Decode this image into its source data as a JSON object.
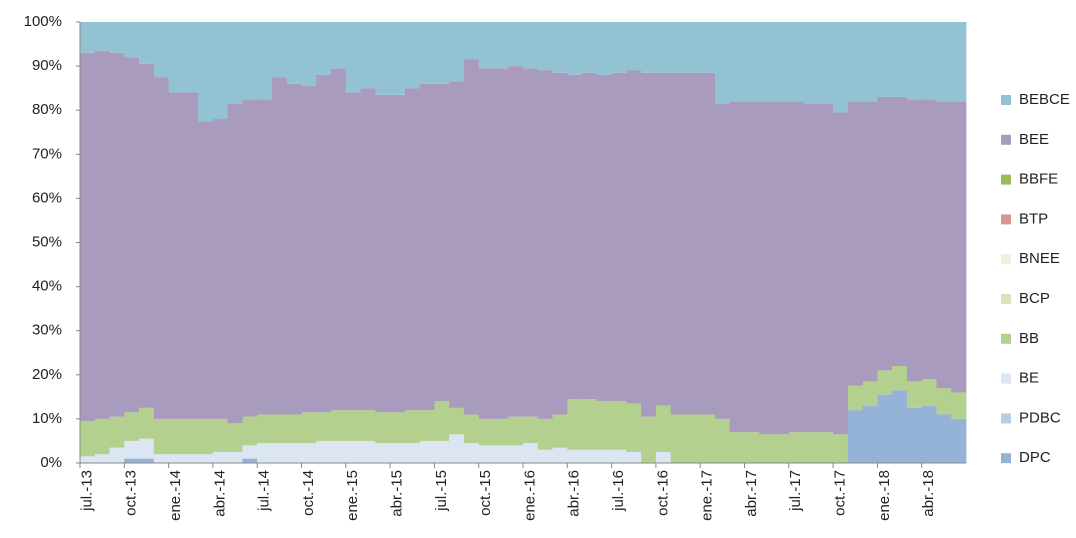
{
  "chart_data": {
    "type": "stacked-area-100",
    "categories": [
      "jul.-13",
      null,
      null,
      "oct.-13",
      null,
      null,
      "ene.-14",
      null,
      null,
      "abr.-14",
      null,
      null,
      "jul.-14",
      null,
      null,
      "oct.-14",
      null,
      null,
      "ene.-15",
      null,
      null,
      "abr.-15",
      null,
      null,
      "jul.-15",
      null,
      null,
      "oct.-15",
      null,
      null,
      "ene.-16",
      null,
      null,
      "abr.-16",
      null,
      null,
      "jul.-16",
      null,
      null,
      "oct.-16",
      null,
      null,
      "ene.-17",
      null,
      null,
      "abr.-17",
      null,
      null,
      "jul.-17",
      null,
      null,
      "oct.-17",
      null,
      null,
      "ene.-18",
      null,
      null,
      "abr.-18",
      null,
      null
    ],
    "ylim": [
      0,
      100
    ],
    "yticks": [
      {
        "value": 0,
        "label": "0%"
      },
      {
        "value": 10,
        "label": "10%"
      },
      {
        "value": 20,
        "label": "20%"
      },
      {
        "value": 30,
        "label": "30%"
      },
      {
        "value": 40,
        "label": "40%"
      },
      {
        "value": 50,
        "label": "50%"
      },
      {
        "value": 60,
        "label": "60%"
      },
      {
        "value": 70,
        "label": "70%"
      },
      {
        "value": 80,
        "label": "80%"
      },
      {
        "value": 90,
        "label": "90%"
      },
      {
        "value": 100,
        "label": "100%"
      }
    ],
    "legend": "right",
    "series": [
      {
        "name": "DPC",
        "color": "#95b3d7",
        "values": [
          0,
          0,
          0,
          1,
          1,
          0,
          0,
          0,
          0,
          0,
          0,
          1,
          0,
          0,
          0,
          0,
          0,
          0,
          0,
          0,
          0,
          0,
          0,
          0,
          0,
          0,
          0,
          0,
          0,
          0,
          0,
          0,
          0,
          0,
          0,
          0,
          0,
          0,
          0,
          0,
          0,
          0,
          0,
          0,
          0,
          0,
          0,
          0,
          0,
          0,
          0,
          0,
          12,
          13,
          15.5,
          16.5,
          12.5,
          13,
          11,
          10
        ]
      },
      {
        "name": "PDBC",
        "color": "#b9cde5",
        "values": [
          0,
          0,
          0,
          0,
          0,
          0,
          0,
          0,
          0,
          0,
          0,
          0,
          0,
          0,
          0,
          0,
          0,
          0,
          0,
          0,
          0,
          0,
          0,
          0,
          0,
          0,
          0,
          0,
          0,
          0,
          0,
          0,
          0,
          0,
          0,
          0,
          0,
          0,
          0,
          0,
          0,
          0,
          0,
          0,
          0,
          0,
          0,
          0,
          0,
          0,
          0,
          0,
          0,
          0,
          0,
          0,
          0,
          0,
          0,
          0
        ]
      },
      {
        "name": "BE",
        "color": "#dce6f2",
        "values": [
          1.5,
          2,
          3.5,
          4,
          4.5,
          2,
          2,
          2,
          2,
          2.5,
          2.5,
          3,
          4.5,
          4.5,
          4.5,
          4.5,
          5,
          5,
          5,
          5,
          4.5,
          4.5,
          4.5,
          5,
          5,
          6.5,
          4.5,
          4,
          4,
          4,
          4.5,
          3,
          3.5,
          3,
          3,
          3,
          3,
          2.5,
          0,
          2.5,
          0,
          0,
          0,
          0,
          0,
          0,
          0,
          0,
          0,
          0,
          0,
          0,
          0,
          0,
          0,
          0,
          0,
          0,
          0,
          0
        ]
      },
      {
        "name": "BB",
        "color": "#b3d08f",
        "values": [
          8,
          8,
          7,
          6.5,
          7,
          8,
          8,
          8,
          8,
          7.5,
          6.5,
          6.5,
          6.5,
          6.5,
          6.5,
          7,
          6.5,
          7,
          7,
          7,
          7,
          7,
          7.5,
          7,
          9,
          6,
          6.5,
          6,
          6,
          6.5,
          6,
          7,
          7.5,
          11.5,
          11.5,
          11,
          11,
          11,
          10.5,
          10.5,
          11,
          11,
          11,
          10,
          7,
          7,
          6.5,
          6.5,
          7,
          7,
          7,
          6.5,
          5.5,
          5.5,
          5.5,
          5.5,
          6,
          6,
          6,
          6
        ]
      },
      {
        "name": "BCP",
        "color": "#d7e4bd",
        "values": [
          0,
          0,
          0,
          0,
          0,
          0,
          0,
          0,
          0,
          0,
          0,
          0,
          0,
          0,
          0,
          0,
          0,
          0,
          0,
          0,
          0,
          0,
          0,
          0,
          0,
          0,
          0,
          0,
          0,
          0,
          0,
          0,
          0,
          0,
          0,
          0,
          0,
          0,
          0,
          0,
          0,
          0,
          0,
          0,
          0,
          0,
          0,
          0,
          0,
          0,
          0,
          0,
          0,
          0,
          0,
          0,
          0,
          0,
          0,
          0
        ]
      },
      {
        "name": "BNEE",
        "color": "#ebf1de",
        "values": [
          0,
          0,
          0,
          0,
          0,
          0,
          0,
          0,
          0,
          0,
          0,
          0,
          0,
          0,
          0,
          0,
          0,
          0,
          0,
          0,
          0,
          0,
          0,
          0,
          0,
          0,
          0,
          0,
          0,
          0,
          0,
          0,
          0,
          0,
          0,
          0,
          0,
          0,
          0,
          0,
          0,
          0,
          0,
          0,
          0,
          0,
          0,
          0,
          0,
          0,
          0,
          0,
          0,
          0,
          0,
          0,
          0,
          0,
          0,
          0
        ]
      },
      {
        "name": "BTP",
        "color": "#d99694",
        "values": [
          0,
          0,
          0,
          0,
          0,
          0,
          0,
          0,
          0,
          0,
          0,
          0,
          0,
          0,
          0,
          0,
          0,
          0,
          0,
          0,
          0,
          0,
          0,
          0,
          0,
          0,
          0,
          0,
          0,
          0,
          0,
          0,
          0,
          0,
          0,
          0,
          0,
          0,
          0,
          0,
          0,
          0,
          0,
          0,
          0,
          0,
          0,
          0,
          0,
          0,
          0,
          0,
          0,
          0,
          0,
          0,
          0,
          0,
          0,
          0
        ]
      },
      {
        "name": "BBFE",
        "color": "#9bbb59",
        "values": [
          0,
          0,
          0,
          0,
          0,
          0,
          0,
          0,
          0,
          0,
          0,
          0,
          0,
          0,
          0,
          0,
          0,
          0,
          0,
          0,
          0,
          0,
          0,
          0,
          0,
          0,
          0,
          0,
          0,
          0,
          0,
          0,
          0,
          0,
          0,
          0,
          0,
          0,
          0,
          0,
          0,
          0,
          0,
          0,
          0,
          0,
          0,
          0,
          0,
          0,
          0,
          0,
          0,
          0,
          0,
          0,
          0,
          0,
          0,
          0
        ]
      },
      {
        "name": "BEE",
        "color": "#a99bbd",
        "values": [
          83.5,
          83.5,
          82.5,
          80.5,
          78,
          77.5,
          74,
          74,
          67.5,
          68,
          72.5,
          72,
          71.5,
          76.5,
          75,
          74,
          76.5,
          77.5,
          72,
          73,
          72,
          72,
          73,
          74,
          72,
          74,
          80.5,
          79.5,
          79.5,
          79.5,
          79,
          79,
          77.5,
          73.5,
          74,
          74,
          74.5,
          75.5,
          78,
          75.5,
          77.5,
          77.5,
          77.5,
          71.5,
          75,
          75,
          75.5,
          75.5,
          75,
          74.5,
          74.5,
          73,
          64.5,
          63.5,
          62,
          61,
          64,
          63.5,
          65,
          66
        ]
      },
      {
        "name": "BEBCE",
        "color": "#93c3d3",
        "values": [
          7,
          6.5,
          7,
          8,
          9.5,
          12.5,
          16,
          16,
          22.5,
          22,
          18.5,
          17.5,
          17.5,
          12.5,
          14,
          14.5,
          12,
          10.5,
          16,
          15,
          16.5,
          16.5,
          15,
          14,
          14,
          13.5,
          8.5,
          10.5,
          10.5,
          10,
          10.5,
          11,
          11.5,
          12,
          11.5,
          12,
          11.5,
          11,
          11.5,
          11.5,
          11.5,
          11.5,
          11.5,
          18.5,
          18,
          18,
          18,
          18,
          18,
          18.5,
          18.5,
          20.5,
          18,
          18,
          17,
          17,
          17.5,
          17.5,
          18,
          18
        ]
      }
    ]
  }
}
